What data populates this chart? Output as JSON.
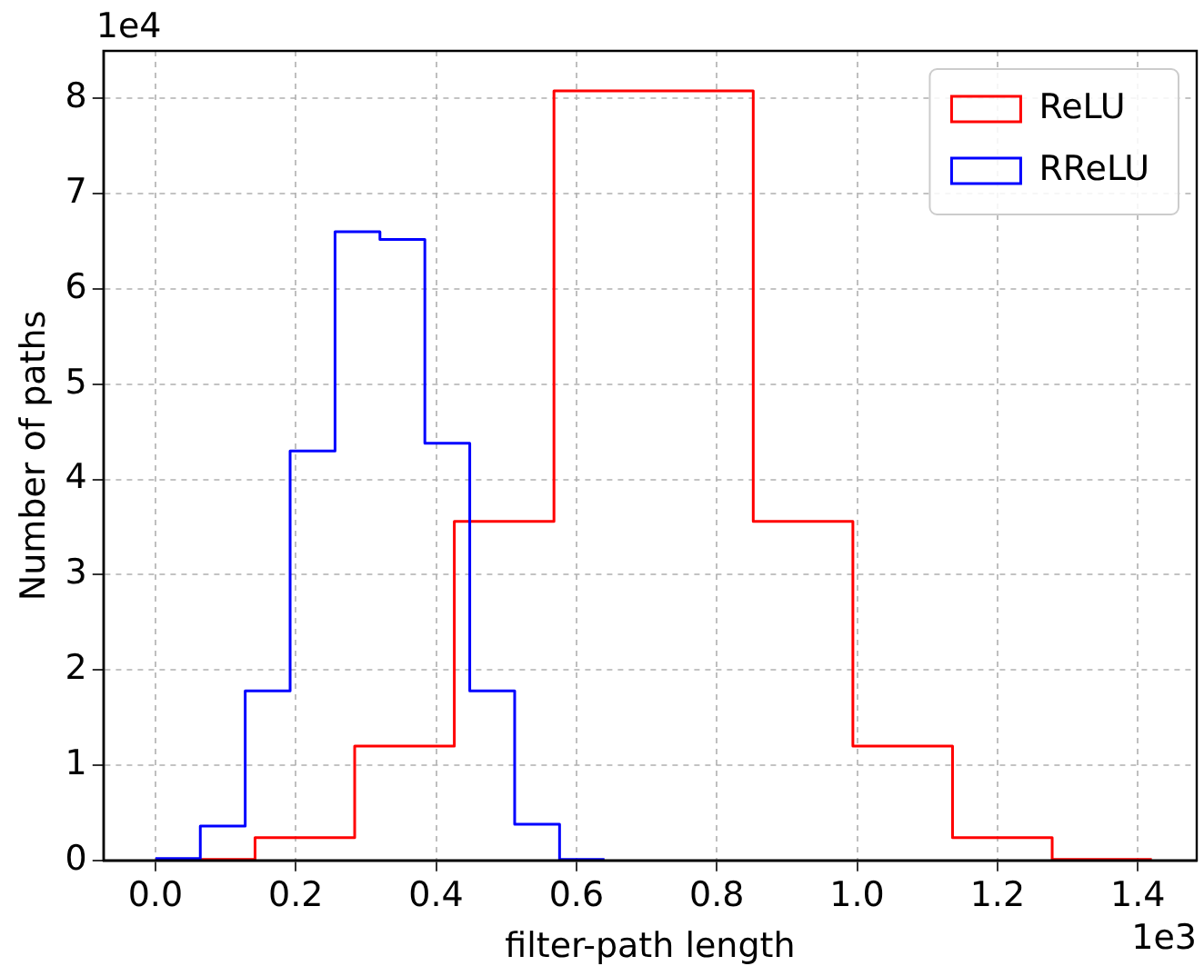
{
  "chart_data": {
    "type": "step",
    "xlabel": "filter-path length",
    "ylabel": "Number of paths",
    "xlim": [
      -0.074,
      1.484
    ],
    "ylim": [
      0,
      8.5
    ],
    "xticks": [
      {
        "value": 0,
        "label": "0.0"
      },
      {
        "value": 0.2,
        "label": "0.2"
      },
      {
        "value": 0.4,
        "label": "0.4"
      },
      {
        "value": 0.6,
        "label": "0.6"
      },
      {
        "value": 0.8,
        "label": "0.8"
      },
      {
        "value": 1,
        "label": "1.0"
      },
      {
        "value": 1.2,
        "label": "1.2"
      },
      {
        "value": 1.4,
        "label": "1.4"
      }
    ],
    "yticks": [
      0,
      1,
      2,
      3,
      4,
      5,
      6,
      7,
      8
    ],
    "annotations": [
      "1e4",
      "1e3"
    ],
    "grid": true,
    "legend": "top right",
    "series": [
      {
        "name": "ReLU",
        "color": "#ff0000",
        "x": [
          0,
          0.142,
          0.284,
          0.426,
          0.568,
          0.71,
          0.852,
          0.994,
          1.136,
          1.278,
          1.42
        ],
        "values": [
          0.01,
          0.24,
          1.2,
          3.56,
          8.08,
          8.08,
          3.56,
          1.2,
          0.24,
          0.01,
          0.01
        ]
      },
      {
        "name": "RReLU",
        "color": "#0000ff",
        "x": [
          0,
          0.064,
          0.128,
          0.192,
          0.256,
          0.32,
          0.384,
          0.448,
          0.512,
          0.576,
          0.64
        ],
        "values": [
          0.02,
          0.36,
          1.78,
          4.3,
          6.6,
          6.52,
          4.38,
          1.78,
          0.38,
          0.01,
          0.01
        ]
      }
    ]
  }
}
